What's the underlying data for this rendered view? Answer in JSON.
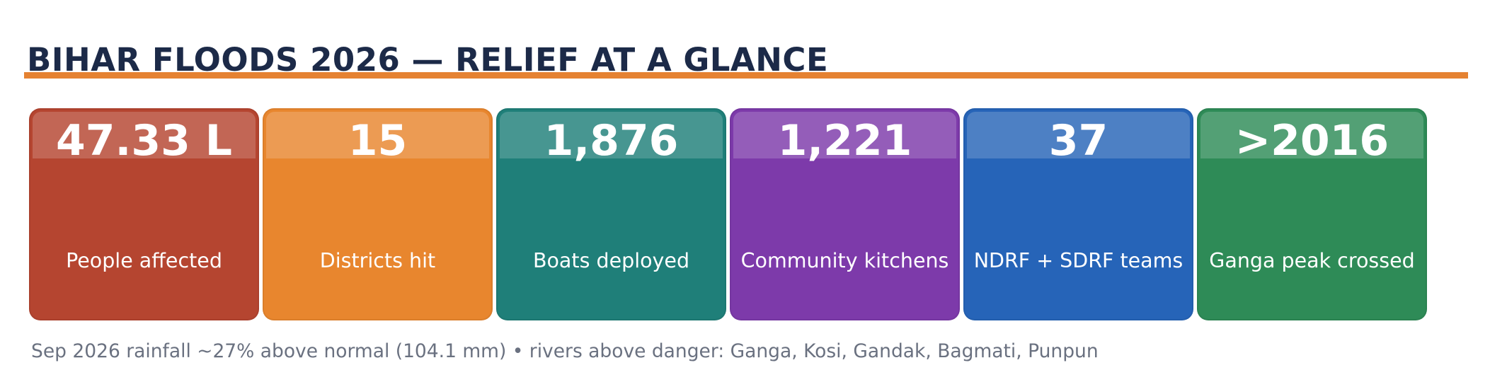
{
  "header": {
    "title": "BIHAR FLOODS 2026  —  RELIEF AT A GLANCE",
    "accent_color": "#e58232"
  },
  "cards": [
    {
      "value": "47.33 L",
      "label": "People affected",
      "color": "#b54530"
    },
    {
      "value": "15",
      "label": "Districts hit",
      "color": "#e8862e"
    },
    {
      "value": "1,876",
      "label": "Boats deployed",
      "color": "#1f7f79"
    },
    {
      "value": "1,221",
      "label": "Community kitchens",
      "color": "#7d3aaa"
    },
    {
      "value": "37",
      "label": "NDRF + SDRF teams",
      "color": "#2664b8"
    },
    {
      "value": ">2016",
      "label": "Ganga peak crossed",
      "color": "#2e8b57"
    }
  ],
  "footnote": "Sep 2026 rainfall ~27% above normal (104.1 mm)  •  rivers above danger: Ganga, Kosi, Gandak, Bagmati, Punpun"
}
